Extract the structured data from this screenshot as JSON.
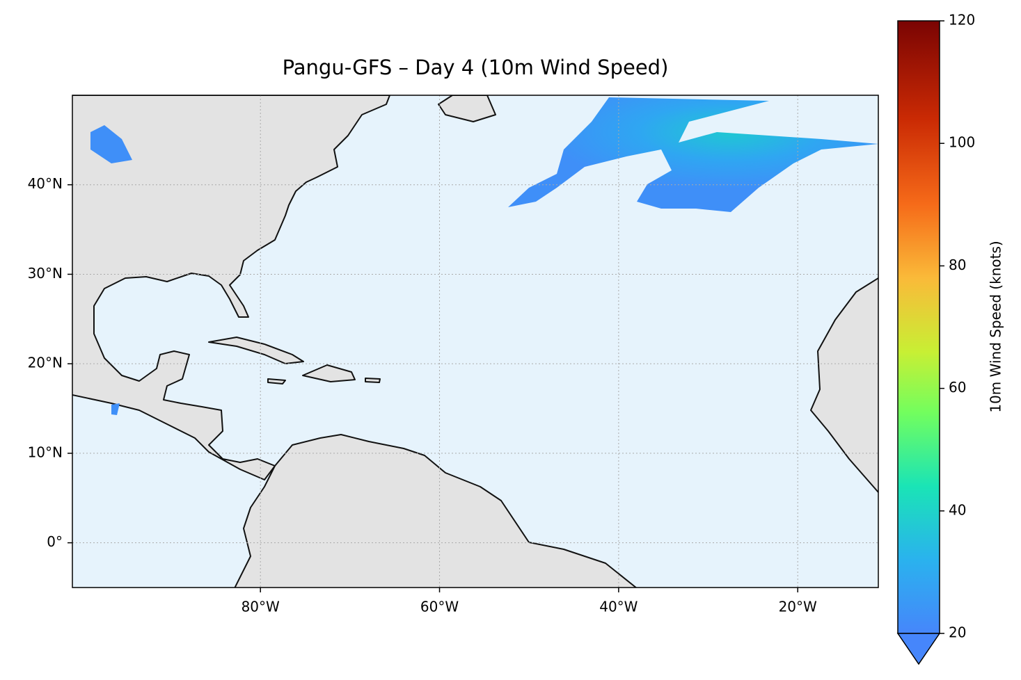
{
  "map": {
    "title": "Pangu-GFS – Day 4 (10m Wind Speed)",
    "xlim": [
      -101,
      -11
    ],
    "ylim": [
      -5,
      50
    ],
    "xticks": [
      {
        "value": -80,
        "label": "80°W"
      },
      {
        "value": -60,
        "label": "60°W"
      },
      {
        "value": -40,
        "label": "40°W"
      },
      {
        "value": -20,
        "label": "20°W"
      }
    ],
    "yticks": [
      {
        "value": 0,
        "label": "0°"
      },
      {
        "value": 10,
        "label": "10°N"
      },
      {
        "value": 20,
        "label": "20°N"
      },
      {
        "value": 30,
        "label": "30°N"
      },
      {
        "value": 40,
        "label": "40°N"
      }
    ],
    "grid": true,
    "colorbar": {
      "label": "10m Wind Speed (knots)",
      "lim": [
        20,
        120
      ],
      "ticks": [
        20,
        40,
        60,
        80,
        100,
        120
      ]
    }
  }
}
